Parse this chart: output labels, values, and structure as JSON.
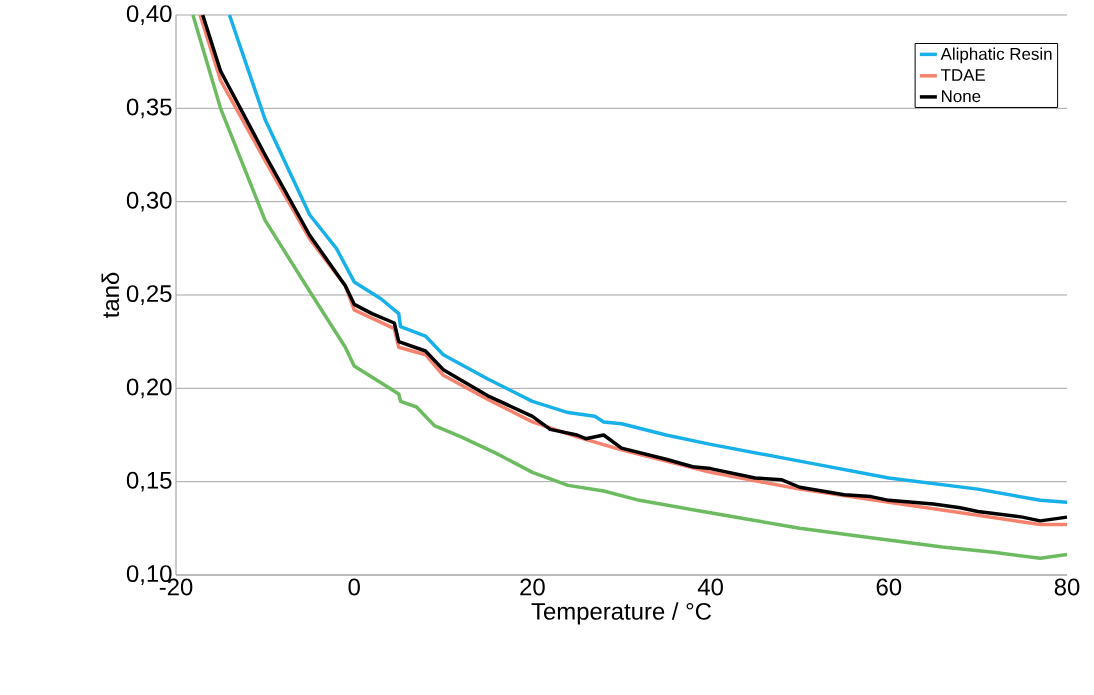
{
  "chart_data": {
    "type": "line",
    "xlabel": "Temperature / °C",
    "ylabel": "tanδ",
    "xlim": [
      -20,
      80
    ],
    "xticks": [
      -20,
      0,
      20,
      40,
      60,
      80
    ],
    "ylim": [
      0.1,
      0.4
    ],
    "yticks": [
      {
        "value": 0.1,
        "label": "0,10"
      },
      {
        "value": 0.15,
        "label": "0,15"
      },
      {
        "value": 0.2,
        "label": "0,20"
      },
      {
        "value": 0.25,
        "label": "0,25"
      },
      {
        "value": 0.3,
        "label": "0,30"
      },
      {
        "value": 0.35,
        "label": "0,35"
      },
      {
        "value": 0.4,
        "label": "0,40"
      }
    ],
    "grid": "y",
    "legend": "top right",
    "marker": "none",
    "line_style": "solid",
    "series": [
      {
        "color": "#6dbb60",
        "x": [
          -18.1,
          -15,
          -10,
          -5,
          -1,
          0,
          3,
          5,
          5.2,
          7,
          9,
          12,
          16,
          20,
          24,
          28,
          32,
          38,
          44,
          50,
          58,
          66,
          72,
          77,
          80
        ],
        "values": [
          0.4,
          0.35,
          0.29,
          0.252,
          0.222,
          0.212,
          0.203,
          0.197,
          0.193,
          0.19,
          0.18,
          0.174,
          0.165,
          0.155,
          0.148,
          0.145,
          0.14,
          0.135,
          0.13,
          0.125,
          0.12,
          0.115,
          0.112,
          0.109,
          0.111
        ]
      },
      {
        "name": "Aliphatic Resin",
        "color": "#18b0e8",
        "x": [
          -14,
          -10,
          -5,
          -2,
          0,
          3,
          5,
          5.2,
          8,
          10,
          15,
          20,
          24,
          27,
          28,
          30,
          35,
          40,
          50,
          60,
          70,
          77,
          80
        ],
        "values": [
          0.4,
          0.344,
          0.293,
          0.275,
          0.257,
          0.248,
          0.24,
          0.233,
          0.228,
          0.218,
          0.205,
          0.193,
          0.187,
          0.185,
          0.182,
          0.181,
          0.175,
          0.17,
          0.161,
          0.152,
          0.146,
          0.14,
          0.139
        ]
      },
      {
        "name": "TDAE",
        "color": "#f4826c",
        "x": [
          -17.3,
          -15,
          -10,
          -5,
          -1,
          0,
          4.5,
          5,
          8,
          10,
          15,
          20,
          25,
          30,
          40,
          50,
          60,
          70,
          77,
          80
        ],
        "values": [
          0.4,
          0.365,
          0.322,
          0.28,
          0.255,
          0.242,
          0.232,
          0.222,
          0.218,
          0.207,
          0.194,
          0.182,
          0.174,
          0.167,
          0.155,
          0.146,
          0.139,
          0.132,
          0.127,
          0.127
        ]
      },
      {
        "name": "None",
        "color": "#000000",
        "x": [
          -17,
          -15,
          -10,
          -5,
          -1,
          0,
          2,
          4.5,
          5,
          8,
          10,
          15,
          20,
          22,
          25,
          26,
          28,
          30,
          35,
          38,
          40,
          45,
          48,
          50,
          55,
          58,
          60,
          65,
          68,
          70,
          75,
          77,
          80
        ],
        "values": [
          0.4,
          0.37,
          0.325,
          0.282,
          0.255,
          0.245,
          0.24,
          0.235,
          0.225,
          0.22,
          0.21,
          0.196,
          0.185,
          0.178,
          0.175,
          0.173,
          0.175,
          0.168,
          0.162,
          0.158,
          0.157,
          0.152,
          0.151,
          0.147,
          0.143,
          0.142,
          0.14,
          0.138,
          0.136,
          0.134,
          0.131,
          0.129,
          0.131
        ]
      }
    ]
  }
}
